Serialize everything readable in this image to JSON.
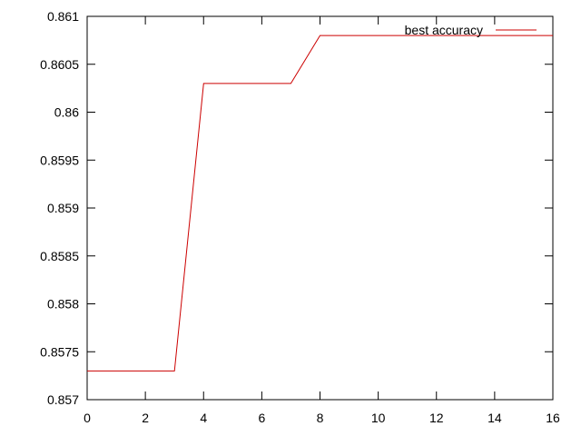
{
  "chart_data": {
    "type": "line",
    "title": "",
    "xlabel": "",
    "ylabel": "",
    "xlim": [
      0,
      16
    ],
    "ylim": [
      0.857,
      0.861
    ],
    "xticks": [
      0,
      2,
      4,
      6,
      8,
      10,
      12,
      14,
      16
    ],
    "yticks": [
      0.857,
      0.8575,
      0.858,
      0.8585,
      0.859,
      0.8595,
      0.86,
      0.8605,
      0.861
    ],
    "x_tick_labels": [
      "0",
      "2",
      "4",
      "6",
      "8",
      "10",
      "12",
      "14",
      "16"
    ],
    "y_tick_labels": [
      "0.857",
      "0.8575",
      "0.858",
      "0.8585",
      "0.859",
      "0.8595",
      "0.86",
      "0.8605",
      "0.861"
    ],
    "grid": false,
    "legend_position": "top-right",
    "series": [
      {
        "name": "best accuracy",
        "color": "#cc0000",
        "x": [
          0,
          1,
          2,
          3,
          4,
          5,
          6,
          7,
          8,
          9,
          10,
          11,
          12,
          13,
          14,
          15,
          16
        ],
        "y": [
          0.8573,
          0.8573,
          0.8573,
          0.8573,
          0.8603,
          0.8603,
          0.8603,
          0.8603,
          0.8608,
          0.8608,
          0.8608,
          0.8608,
          0.8608,
          0.8608,
          0.8608,
          0.8608,
          0.8608
        ]
      }
    ]
  }
}
